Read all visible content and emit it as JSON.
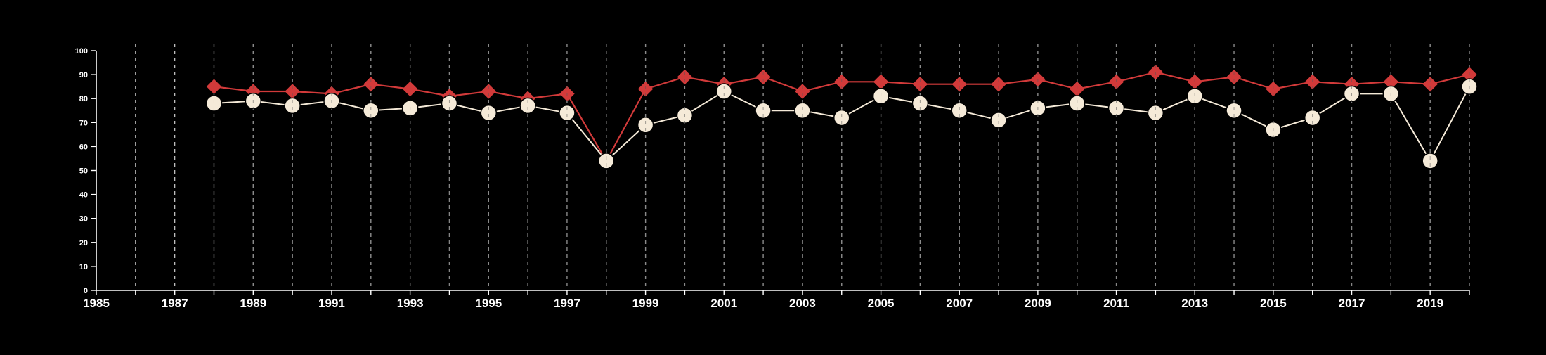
{
  "chart_data": {
    "type": "line",
    "title": "",
    "xlabel": "",
    "ylabel": "",
    "xlim": [
      1985,
      2020
    ],
    "ylim": [
      0,
      100
    ],
    "x_ticks": [
      1985,
      1987,
      1989,
      1991,
      1993,
      1995,
      1997,
      1999,
      2001,
      2003,
      2005,
      2007,
      2009,
      2011,
      2013,
      2015,
      2017,
      2019
    ],
    "y_ticks": [
      0,
      10,
      20,
      30,
      40,
      50,
      60,
      70,
      80,
      90,
      100
    ],
    "vertical_gridlines": "dashed, every year",
    "legend": "none",
    "background_color": "#000000",
    "series": [
      {
        "marker": "diamond",
        "color": "#d23a3a",
        "x": [
          1988,
          1989,
          1990,
          1991,
          1992,
          1993,
          1994,
          1995,
          1996,
          1997,
          1998,
          1999,
          2000,
          2001,
          2002,
          2003,
          2004,
          2005,
          2006,
          2007,
          2008,
          2009,
          2010,
          2011,
          2012,
          2013,
          2014,
          2015,
          2016,
          2017,
          2018,
          2019,
          2020
        ],
        "values": [
          85,
          83,
          83,
          82,
          86,
          84,
          81,
          83,
          80,
          82,
          54,
          84,
          89,
          86,
          89,
          83,
          87,
          87,
          86,
          86,
          86,
          88,
          84,
          87,
          91,
          87,
          89,
          84,
          87,
          86,
          87,
          86,
          90
        ]
      },
      {
        "marker": "circle",
        "color": "#f5ead8",
        "x": [
          1988,
          1989,
          1990,
          1991,
          1992,
          1993,
          1994,
          1995,
          1996,
          1997,
          1998,
          1999,
          2000,
          2001,
          2002,
          2003,
          2004,
          2005,
          2006,
          2007,
          2008,
          2009,
          2010,
          2011,
          2012,
          2013,
          2014,
          2015,
          2016,
          2017,
          2018,
          2019,
          2020
        ],
        "values": [
          78,
          79,
          77,
          79,
          75,
          76,
          78,
          74,
          77,
          74,
          54,
          69,
          73,
          83,
          75,
          75,
          72,
          81,
          78,
          75,
          71,
          76,
          78,
          76,
          74,
          81,
          75,
          67,
          72,
          82,
          82,
          54,
          85
        ]
      }
    ]
  }
}
